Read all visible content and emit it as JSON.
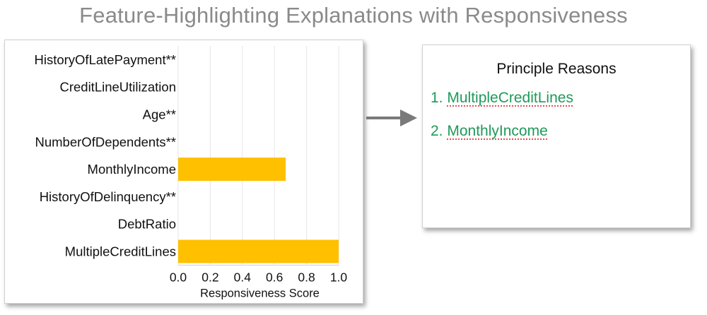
{
  "title": "Feature-Highlighting Explanations with Responsiveness",
  "chart_data": {
    "type": "bar",
    "orientation": "horizontal",
    "categories": [
      "HistoryOfLatePayment**",
      "CreditLineUtilization",
      "Age**",
      "NumberOfDependents**",
      "MonthlyIncome",
      "HistoryOfDelinquency**",
      "DebtRatio",
      "MultipleCreditLines"
    ],
    "values": [
      0,
      0,
      0,
      0,
      0.67,
      0,
      0,
      1.0
    ],
    "xlabel": "Responsiveness Score",
    "ylabel": "",
    "xlim": [
      0,
      1.0
    ],
    "xticks": [
      "0.0",
      "0.2",
      "0.4",
      "0.6",
      "0.8",
      "1.0"
    ],
    "bar_color": "#FFC000",
    "grid": "vertical"
  },
  "reasons": {
    "title": "Principle Reasons",
    "items": [
      {
        "number": "1.",
        "text": "MultipleCreditLines"
      },
      {
        "number": "2.",
        "text": "MonthlyIncome"
      }
    ],
    "color": "#1e9a5a"
  }
}
